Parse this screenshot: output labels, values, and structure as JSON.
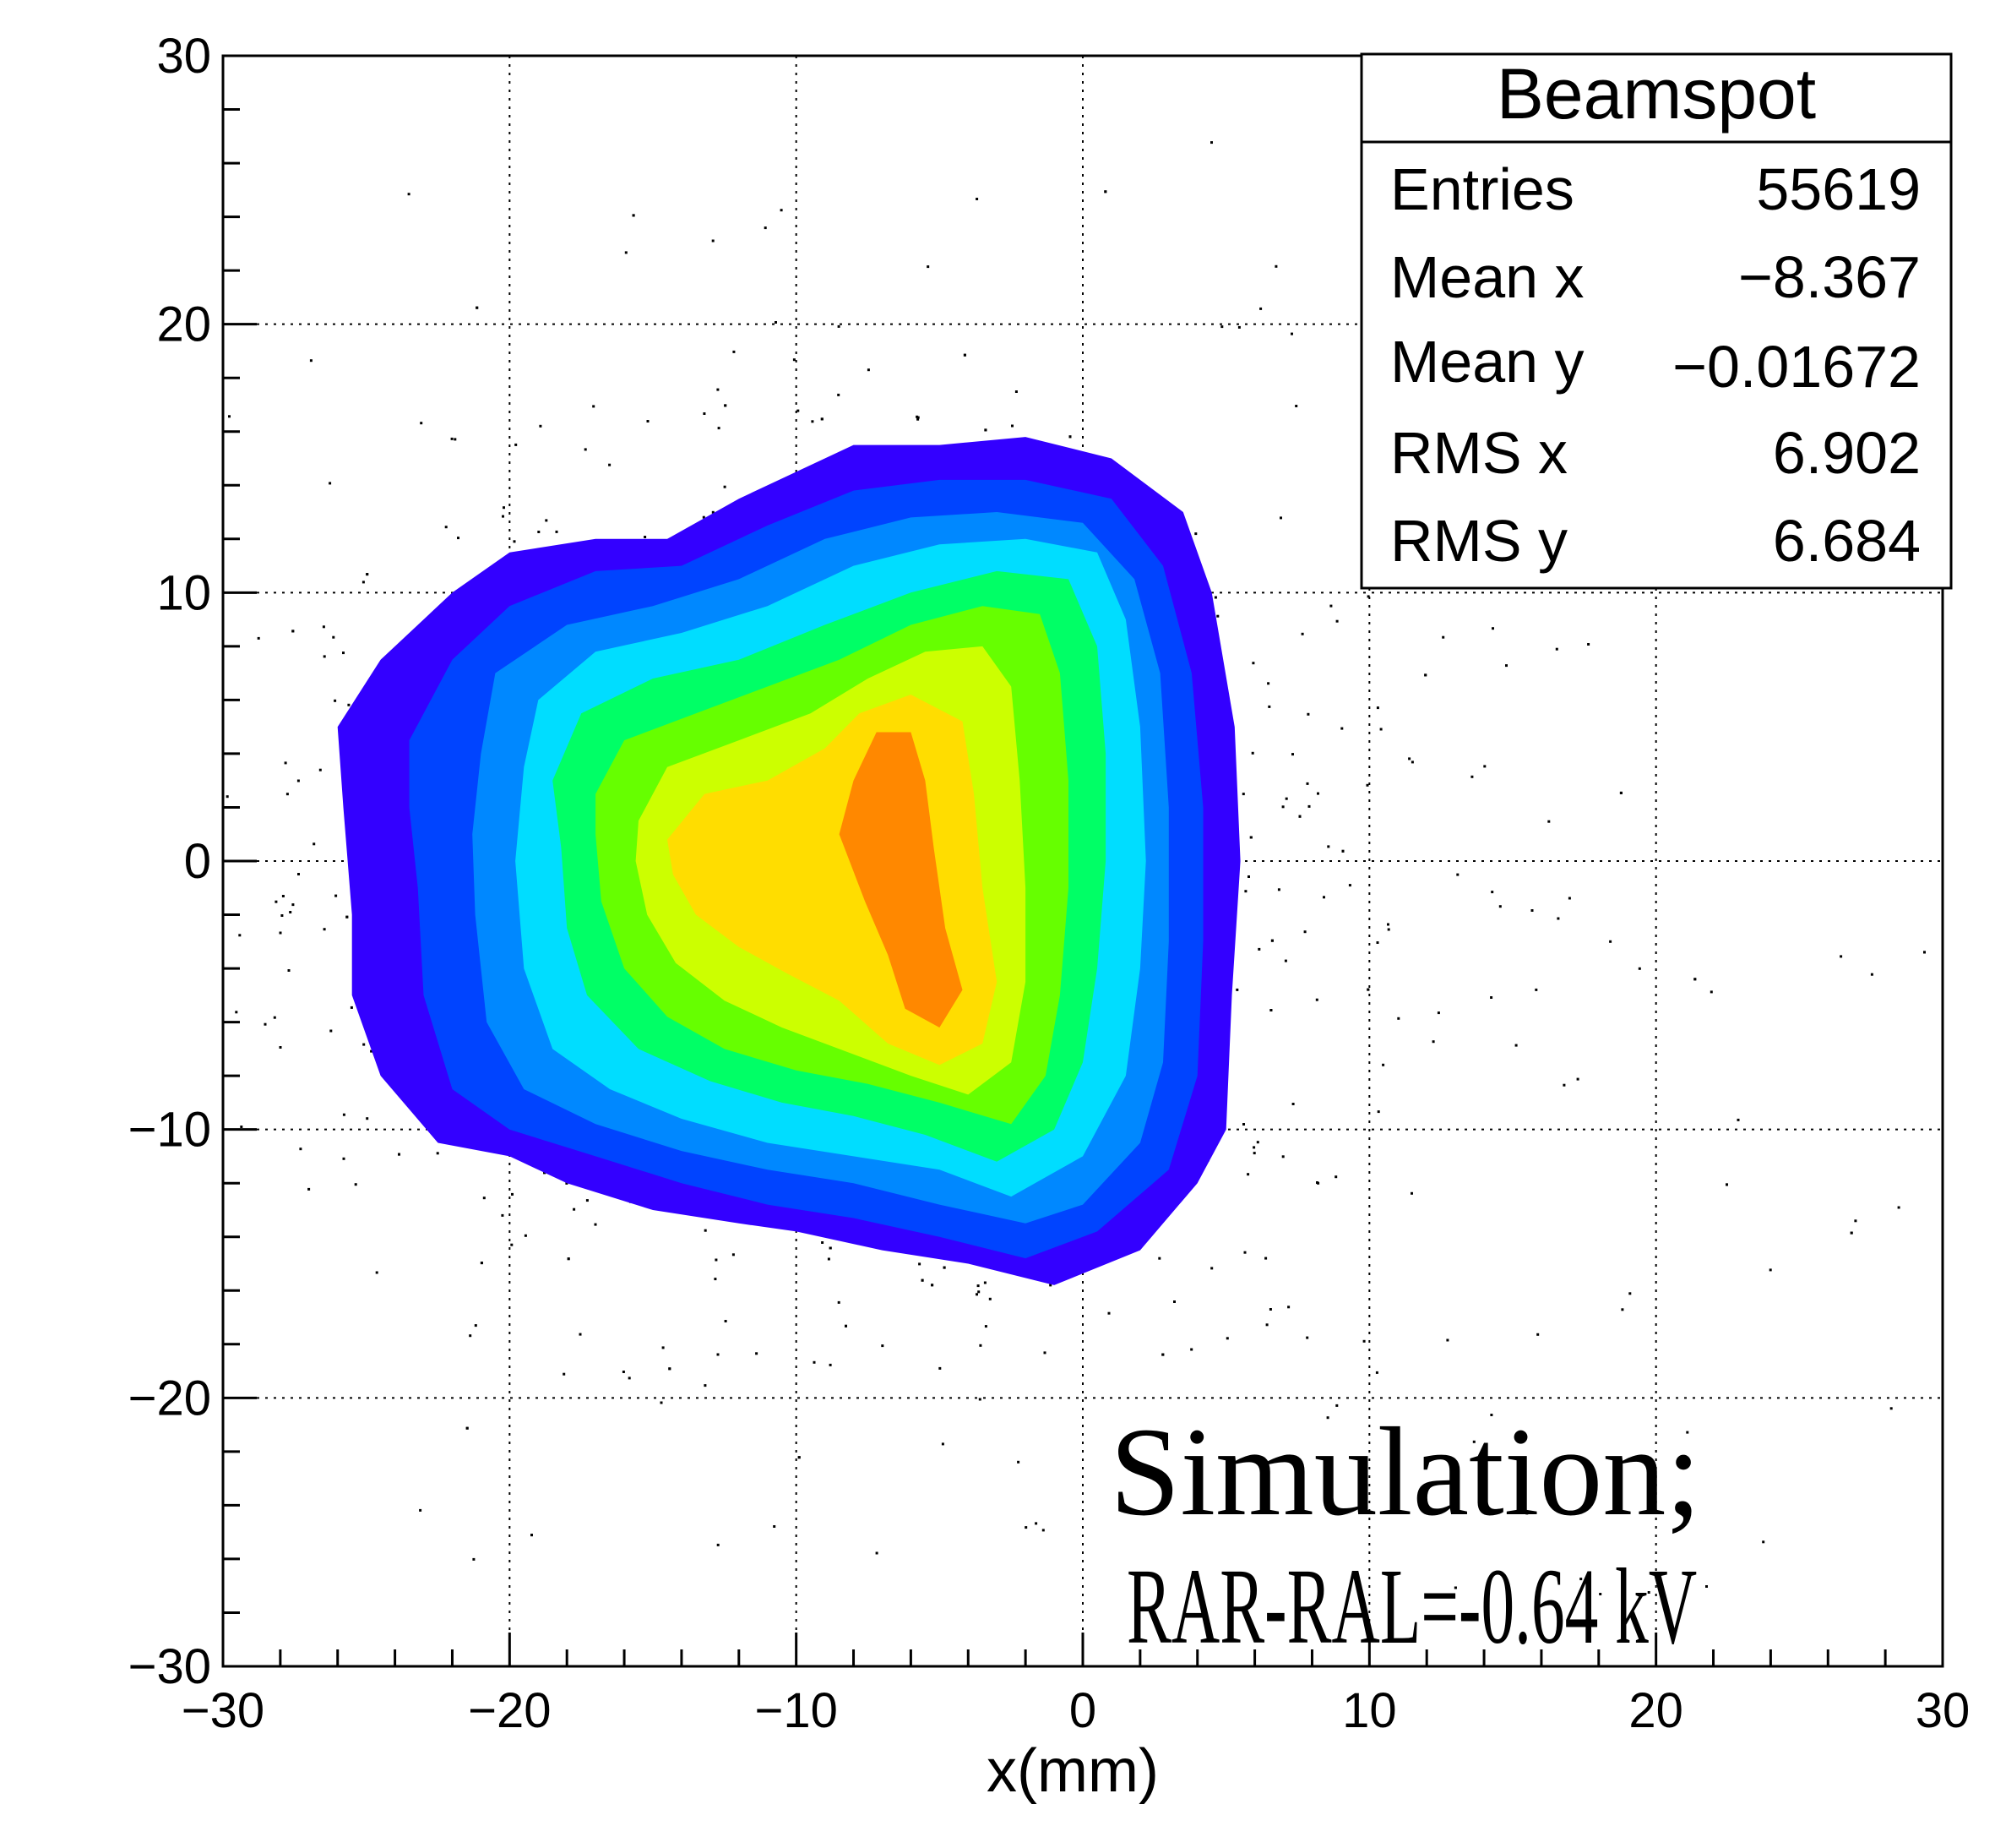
{
  "chart_data": {
    "type": "heatmap",
    "subtype": "2D histogram, colored contour fill (ROOT CONTZ) with scatter of sparse entries",
    "title": "",
    "xlabel": "x(mm)",
    "ylabel": "",
    "xlim": [
      -30,
      30
    ],
    "ylim": [
      -30,
      30
    ],
    "xticks": [
      -30,
      -20,
      -10,
      0,
      10,
      20,
      30
    ],
    "yticks": [
      -30,
      -20,
      -10,
      0,
      10,
      20,
      30
    ],
    "xtick_labels": [
      "−30",
      "−20",
      "−10",
      "0",
      "10",
      "20",
      "30"
    ],
    "ytick_labels": [
      "−30",
      "−20",
      "−10",
      "0",
      "10",
      "20",
      "30"
    ],
    "grid": true,
    "grid_style": "dotted",
    "colors": [
      "#3300ff",
      "#0044ff",
      "#0088ff",
      "#00ddff",
      "#00ff66",
      "#66ff00",
      "#ccff00",
      "#ffdd00",
      "#ff8800",
      "#ff2200"
    ],
    "contour_levels": [
      {
        "level": 1,
        "points": [
          [
            -26,
            5
          ],
          [
            -24.5,
            7.5
          ],
          [
            -22,
            10
          ],
          [
            -20,
            11.5
          ],
          [
            -17,
            12
          ],
          [
            -14.5,
            12
          ],
          [
            -12,
            13.5
          ],
          [
            -10,
            14.5
          ],
          [
            -8,
            15.5
          ],
          [
            -5,
            15.5
          ],
          [
            -2,
            15.8
          ],
          [
            1,
            15
          ],
          [
            3.5,
            13
          ],
          [
            4.5,
            10
          ],
          [
            5.3,
            5
          ],
          [
            5.5,
            0
          ],
          [
            5.2,
            -5
          ],
          [
            5,
            -10
          ],
          [
            4,
            -12
          ],
          [
            2,
            -14.5
          ],
          [
            -1,
            -15.8
          ],
          [
            -4,
            -15
          ],
          [
            -7,
            -14.5
          ],
          [
            -10,
            -13.8
          ],
          [
            -12,
            -13.5
          ],
          [
            -15,
            -13
          ],
          [
            -18,
            -12
          ],
          [
            -20,
            -11
          ],
          [
            -22.5,
            -10.5
          ],
          [
            -24.5,
            -8
          ],
          [
            -25.5,
            -5
          ],
          [
            -25.5,
            -2
          ],
          [
            -25.8,
            2
          ]
        ]
      },
      {
        "level": 2,
        "points": [
          [
            -23.5,
            4.5
          ],
          [
            -22,
            7.5
          ],
          [
            -20,
            9.5
          ],
          [
            -17,
            10.8
          ],
          [
            -14,
            11
          ],
          [
            -11,
            12.5
          ],
          [
            -8,
            13.8
          ],
          [
            -5,
            14.2
          ],
          [
            -2,
            14.2
          ],
          [
            1,
            13.5
          ],
          [
            2.8,
            11
          ],
          [
            3.8,
            7
          ],
          [
            4.2,
            2
          ],
          [
            4.2,
            -3
          ],
          [
            4,
            -8
          ],
          [
            3,
            -11.5
          ],
          [
            0.5,
            -13.8
          ],
          [
            -2,
            -14.8
          ],
          [
            -5,
            -14
          ],
          [
            -8,
            -13.3
          ],
          [
            -11,
            -12.8
          ],
          [
            -14,
            -12
          ],
          [
            -17,
            -11
          ],
          [
            -20,
            -10
          ],
          [
            -22,
            -8.5
          ],
          [
            -23,
            -5
          ],
          [
            -23.2,
            -1
          ],
          [
            -23.5,
            2
          ]
        ]
      },
      {
        "level": 3,
        "points": [
          [
            -21,
            4
          ],
          [
            -20.5,
            7
          ],
          [
            -18,
            8.8
          ],
          [
            -15,
            9.5
          ],
          [
            -12,
            10.5
          ],
          [
            -9,
            12
          ],
          [
            -6,
            12.8
          ],
          [
            -3,
            13
          ],
          [
            0,
            12.6
          ],
          [
            1.8,
            10.5
          ],
          [
            2.7,
            7
          ],
          [
            3,
            2
          ],
          [
            3,
            -3
          ],
          [
            2.8,
            -7.5
          ],
          [
            2,
            -10.5
          ],
          [
            0,
            -12.8
          ],
          [
            -2,
            -13.5
          ],
          [
            -5,
            -12.8
          ],
          [
            -8,
            -12
          ],
          [
            -11,
            -11.5
          ],
          [
            -14,
            -10.8
          ],
          [
            -17,
            -9.8
          ],
          [
            -19.5,
            -8.5
          ],
          [
            -20.8,
            -6
          ],
          [
            -21.2,
            -2
          ],
          [
            -21.3,
            1
          ]
        ]
      },
      {
        "level": 4,
        "points": [
          [
            -19.5,
            3.5
          ],
          [
            -19,
            6
          ],
          [
            -17,
            7.8
          ],
          [
            -14,
            8.5
          ],
          [
            -11,
            9.5
          ],
          [
            -8,
            11
          ],
          [
            -5,
            11.8
          ],
          [
            -2,
            12
          ],
          [
            0.5,
            11.5
          ],
          [
            1.5,
            9
          ],
          [
            2,
            5
          ],
          [
            2.2,
            0
          ],
          [
            2,
            -4
          ],
          [
            1.5,
            -8
          ],
          [
            0,
            -11
          ],
          [
            -2.5,
            -12.5
          ],
          [
            -5,
            -11.5
          ],
          [
            -8,
            -11
          ],
          [
            -11,
            -10.5
          ],
          [
            -14,
            -9.6
          ],
          [
            -16.5,
            -8.5
          ],
          [
            -18.5,
            -7
          ],
          [
            -19.5,
            -4
          ],
          [
            -19.8,
            0
          ]
        ]
      },
      {
        "level": 5,
        "points": [
          [
            -18.5,
            3
          ],
          [
            -17.5,
            5.5
          ],
          [
            -15,
            6.8
          ],
          [
            -12,
            7.5
          ],
          [
            -9,
            8.8
          ],
          [
            -6,
            10
          ],
          [
            -3,
            10.8
          ],
          [
            -0.5,
            10.5
          ],
          [
            0.5,
            8
          ],
          [
            0.8,
            4
          ],
          [
            0.8,
            0
          ],
          [
            0.5,
            -4
          ],
          [
            0,
            -7.5
          ],
          [
            -1,
            -10
          ],
          [
            -3,
            -11.2
          ],
          [
            -5.5,
            -10.2
          ],
          [
            -8,
            -9.5
          ],
          [
            -10.5,
            -9
          ],
          [
            -13,
            -8.2
          ],
          [
            -15.5,
            -7
          ],
          [
            -17.3,
            -5
          ],
          [
            -18,
            -2.5
          ],
          [
            -18.2,
            0.5
          ]
        ]
      },
      {
        "level": 6,
        "points": [
          [
            -17,
            2.5
          ],
          [
            -16,
            4.5
          ],
          [
            -13.5,
            5.5
          ],
          [
            -11,
            6.5
          ],
          [
            -8.5,
            7.5
          ],
          [
            -6,
            8.8
          ],
          [
            -3.5,
            9.5
          ],
          [
            -1.5,
            9.2
          ],
          [
            -0.8,
            7
          ],
          [
            -0.5,
            3
          ],
          [
            -0.5,
            -1
          ],
          [
            -0.8,
            -5
          ],
          [
            -1.3,
            -8
          ],
          [
            -2.5,
            -9.8
          ],
          [
            -5,
            -9
          ],
          [
            -7.5,
            -8.3
          ],
          [
            -10,
            -7.8
          ],
          [
            -12.5,
            -7
          ],
          [
            -14.5,
            -5.8
          ],
          [
            -16,
            -4
          ],
          [
            -16.8,
            -1.5
          ],
          [
            -17,
            1
          ]
        ]
      },
      {
        "level": 7,
        "points": [
          [
            -15.5,
            1.5
          ],
          [
            -14.5,
            3.5
          ],
          [
            -12,
            4.5
          ],
          [
            -9.5,
            5.5
          ],
          [
            -7.5,
            6.8
          ],
          [
            -5.5,
            7.8
          ],
          [
            -3.5,
            8
          ],
          [
            -2.5,
            6.5
          ],
          [
            -2.2,
            3
          ],
          [
            -2,
            -1
          ],
          [
            -2,
            -4.5
          ],
          [
            -2.5,
            -7.5
          ],
          [
            -4,
            -8.7
          ],
          [
            -6,
            -8
          ],
          [
            -8.5,
            -7
          ],
          [
            -10.5,
            -6.2
          ],
          [
            -12.5,
            -5.2
          ],
          [
            -14.2,
            -3.8
          ],
          [
            -15.2,
            -2
          ],
          [
            -15.6,
            0
          ]
        ]
      },
      {
        "level": 8,
        "points": [
          [
            -14.5,
            0.8
          ],
          [
            -13.2,
            2.5
          ],
          [
            -11,
            3
          ],
          [
            -9,
            4.2
          ],
          [
            -7.8,
            5.5
          ],
          [
            -6,
            6.2
          ],
          [
            -4.2,
            5.2
          ],
          [
            -3.8,
            2.5
          ],
          [
            -3.5,
            -1
          ],
          [
            -3,
            -4.5
          ],
          [
            -3.5,
            -6.8
          ],
          [
            -5,
            -7.6
          ],
          [
            -6.8,
            -6.8
          ],
          [
            -8.5,
            -5.2
          ],
          [
            -10.3,
            -4.2
          ],
          [
            -12,
            -3.2
          ],
          [
            -13.5,
            -2
          ],
          [
            -14.3,
            -0.5
          ]
        ]
      },
      {
        "level": 9,
        "points": [
          [
            -8.5,
            1
          ],
          [
            -8,
            3
          ],
          [
            -7.2,
            4.8
          ],
          [
            -6,
            4.8
          ],
          [
            -5.5,
            3
          ],
          [
            -5.2,
            0.5
          ],
          [
            -4.8,
            -2.5
          ],
          [
            -4.2,
            -4.8
          ],
          [
            -5,
            -6.2
          ],
          [
            -6.2,
            -5.5
          ],
          [
            -6.8,
            -3.5
          ],
          [
            -7.6,
            -1.5
          ]
        ]
      }
    ],
    "scatter_spread": {
      "x_mean": -8.4,
      "y_mean": 0.0,
      "x_rms": 11.5,
      "y_rms": 9.0,
      "count": 1400
    }
  },
  "stats_box": {
    "title": "Beamspot",
    "rows": [
      {
        "label": "Entries",
        "value": "55619"
      },
      {
        "label": "Mean x",
        "value": "−8.367"
      },
      {
        "label": "Mean y",
        "value": "−0.01672"
      },
      {
        "label": "RMS x",
        "value": "6.902"
      },
      {
        "label": "RMS y",
        "value": "6.684"
      }
    ]
  },
  "annotation": {
    "line1": "Simulation;",
    "line2": "RAR-RAL=-0.64 kV"
  }
}
